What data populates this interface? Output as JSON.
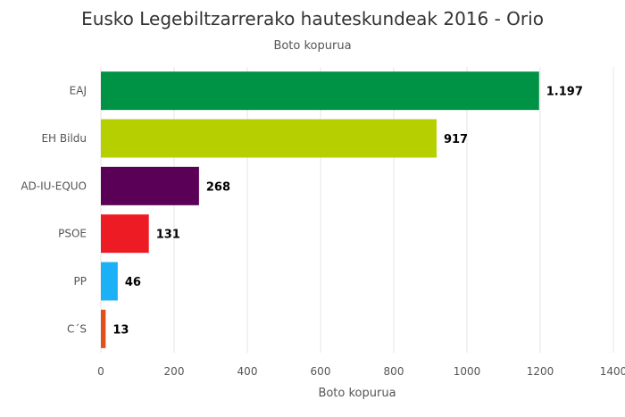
{
  "chart_data": {
    "type": "bar",
    "orientation": "horizontal",
    "title": "Eusko Legebiltzarrerako hauteskundeak 2016 - Orio",
    "subtitle": "Boto kopurua",
    "xlabel": "Boto kopurua",
    "ylabel": "",
    "categories": [
      "EAJ",
      "EH Bildu",
      "AD-IU-EQUO",
      "PSOE",
      "PP",
      "C´S"
    ],
    "values": [
      1197,
      917,
      268,
      131,
      46,
      13
    ],
    "value_labels": [
      "1.197",
      "917",
      "268",
      "131",
      "46",
      "13"
    ],
    "colors": [
      "#009245",
      "#b5cf00",
      "#5b0057",
      "#ed1c24",
      "#1cb0f6",
      "#e0501a"
    ],
    "xlim": [
      0,
      1400
    ],
    "ticks": [
      0,
      200,
      400,
      600,
      800,
      1000,
      1200,
      1400
    ],
    "tick_labels": [
      "0",
      "200",
      "400",
      "600",
      "800",
      "1000",
      "1200",
      "1400"
    ],
    "grid": true,
    "legend": "none"
  }
}
